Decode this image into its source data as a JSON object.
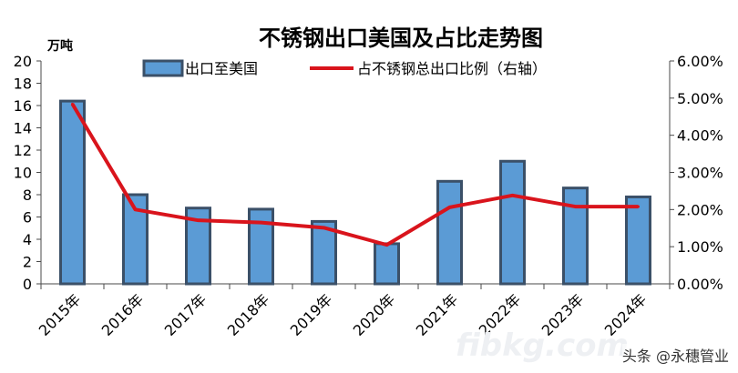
{
  "chart_data": {
    "type": "bar+line",
    "title": "不锈钢出口美国及占比走势图",
    "ylabel": "万吨",
    "categories": [
      "2015年",
      "2016年",
      "2017年",
      "2018年",
      "2019年",
      "2020年",
      "2021年",
      "2022年",
      "2023年",
      "2024年"
    ],
    "ylim": [
      0,
      20
    ],
    "yticks": [
      "0",
      "2",
      "4",
      "6",
      "8",
      "10",
      "12",
      "14",
      "16",
      "18",
      "20"
    ],
    "y2lim": [
      0,
      6
    ],
    "y2ticks": [
      "0.00%",
      "1.00%",
      "2.00%",
      "3.00%",
      "4.00%",
      "5.00%",
      "6.00%"
    ],
    "grid": false,
    "legend_position": "top",
    "series": [
      {
        "name": "出口至美国",
        "type": "bar",
        "axis": "left",
        "color": "#5b9bd5",
        "edge": "#3b5068",
        "values": [
          16.4,
          8.0,
          6.8,
          6.7,
          5.6,
          3.6,
          9.2,
          11.0,
          8.6,
          7.8
        ]
      },
      {
        "name": "占不锈钢总出口比例（右轴）",
        "type": "line",
        "axis": "right",
        "color": "#d9141c",
        "values": [
          4.84,
          2.0,
          1.71,
          1.65,
          1.51,
          1.05,
          2.06,
          2.38,
          2.08,
          2.08
        ]
      }
    ]
  },
  "watermark": "头条 @永穗管业",
  "background_watermark": "fibkg.com 我的不锈钢"
}
